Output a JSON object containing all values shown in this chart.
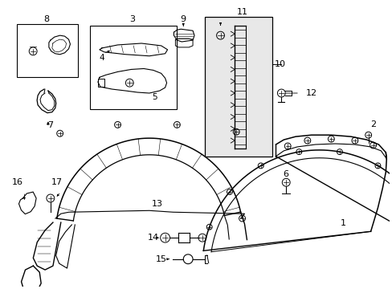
{
  "background_color": "#ffffff",
  "line_color": "#000000",
  "label_color": "#000000",
  "figsize": [
    4.89,
    3.6
  ],
  "dpi": 100,
  "gray_fill": "#e8e8e8"
}
